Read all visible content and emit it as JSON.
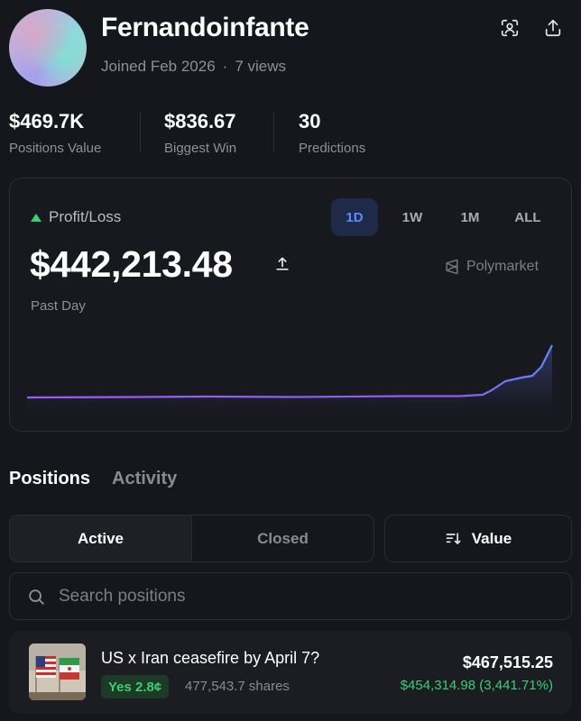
{
  "profile": {
    "username": "Fernandoinfante",
    "joined": "Joined Feb 2026",
    "separator": "·",
    "views": "7 views"
  },
  "header_icons": [
    "qr-scan-icon",
    "share-icon"
  ],
  "stats": [
    {
      "value": "$469.7K",
      "label": "Positions Value"
    },
    {
      "value": "$836.67",
      "label": "Biggest Win"
    },
    {
      "value": "30",
      "label": "Predictions"
    }
  ],
  "pnl": {
    "label": "Profit/Loss",
    "value": "$442,213.48",
    "period": "Past Day",
    "brand": "Polymarket",
    "timeframes": [
      "1D",
      "1W",
      "1M",
      "ALL"
    ],
    "active_timeframe": "1D",
    "trend": "up"
  },
  "colors": {
    "accent_blue": "#5b8cff",
    "positive_green": "#3ccf72",
    "line_start": "#9b5cf2",
    "line_end": "#5b8cff"
  },
  "tabs": {
    "positions": "Positions",
    "activity": "Activity"
  },
  "filters": {
    "active": "Active",
    "closed": "Closed",
    "sort": "Value"
  },
  "search": {
    "placeholder": "Search positions"
  },
  "positions": [
    {
      "title": "US x Iran ceasefire by April 7?",
      "outcome": "Yes 2.8¢",
      "shares": "477,543.7 shares",
      "value": "$467,515.25",
      "pnl": "$454,314.98 (3,441.71%)"
    }
  ]
}
